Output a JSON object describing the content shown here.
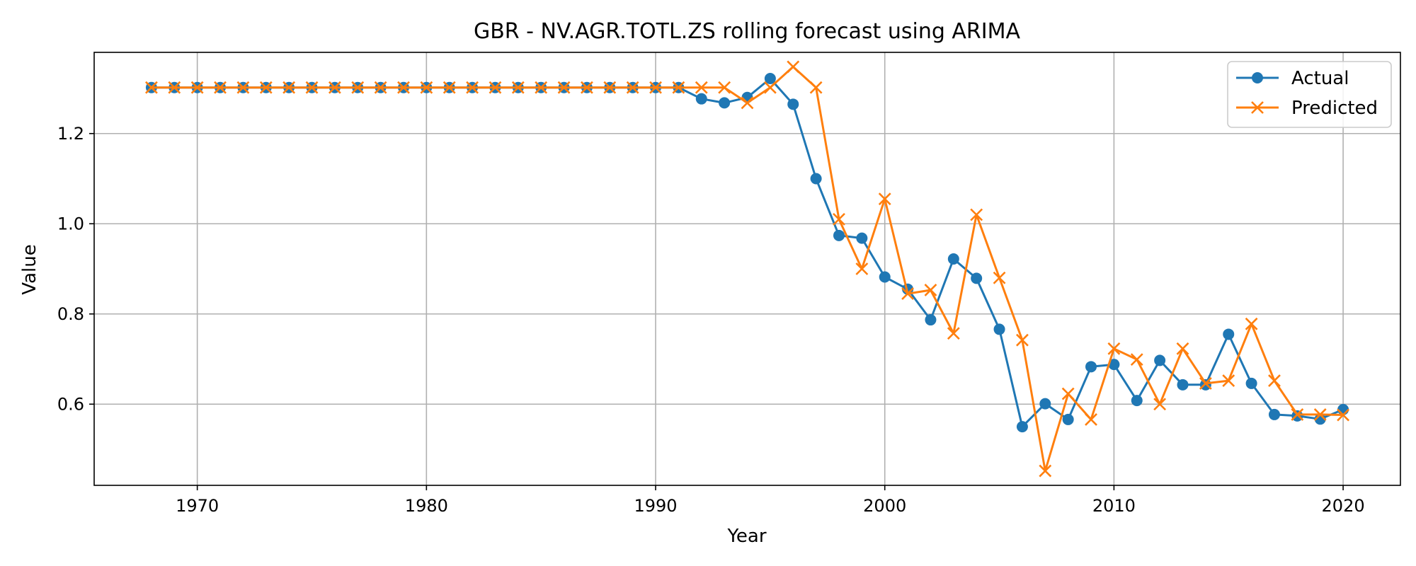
{
  "chart_data": {
    "type": "line",
    "title": "GBR - NV.AGR.TOTL.ZS rolling forecast using ARIMA",
    "xlabel": "Year",
    "ylabel": "Value",
    "xlim": [
      1965.5,
      2022.5
    ],
    "ylim": [
      0.42,
      1.38
    ],
    "xticks": [
      1970,
      1980,
      1990,
      2000,
      2010,
      2020
    ],
    "yticks": [
      0.6,
      0.8,
      1.0,
      1.2
    ],
    "ytick_labels": [
      "0.6",
      "0.8",
      "1.0",
      "1.2"
    ],
    "grid": true,
    "legend_position": "top-right",
    "x": [
      1968,
      1969,
      1970,
      1971,
      1972,
      1973,
      1974,
      1975,
      1976,
      1977,
      1978,
      1979,
      1980,
      1981,
      1982,
      1983,
      1984,
      1985,
      1986,
      1987,
      1988,
      1989,
      1990,
      1991,
      1992,
      1993,
      1994,
      1995,
      1996,
      1997,
      1998,
      1999,
      2000,
      2001,
      2002,
      2003,
      2004,
      2005,
      2006,
      2007,
      2008,
      2009,
      2010,
      2011,
      2012,
      2013,
      2014,
      2015,
      2016,
      2017,
      2018,
      2019,
      2020
    ],
    "series": [
      {
        "name": "Actual",
        "color": "#1f77b4",
        "marker": "circle",
        "values": [
          1.302,
          1.302,
          1.302,
          1.302,
          1.302,
          1.302,
          1.302,
          1.302,
          1.302,
          1.302,
          1.302,
          1.302,
          1.302,
          1.302,
          1.302,
          1.302,
          1.302,
          1.302,
          1.302,
          1.302,
          1.302,
          1.302,
          1.302,
          1.302,
          1.277,
          1.268,
          1.28,
          1.322,
          1.265,
          1.1,
          0.974,
          0.968,
          0.882,
          0.855,
          0.787,
          0.922,
          0.879,
          0.766,
          0.55,
          0.601,
          0.566,
          0.683,
          0.688,
          0.608,
          0.697,
          0.643,
          0.643,
          0.755,
          0.646,
          0.577,
          0.574,
          0.567,
          0.588
        ]
      },
      {
        "name": "Predicted",
        "color": "#ff7f0e",
        "marker": "x",
        "values": [
          1.302,
          1.302,
          1.302,
          1.302,
          1.302,
          1.302,
          1.302,
          1.302,
          1.302,
          1.302,
          1.302,
          1.302,
          1.302,
          1.302,
          1.302,
          1.302,
          1.302,
          1.302,
          1.302,
          1.302,
          1.302,
          1.302,
          1.302,
          1.302,
          1.302,
          1.302,
          1.268,
          1.302,
          1.348,
          1.302,
          1.01,
          0.9,
          1.055,
          0.845,
          0.853,
          0.757,
          1.02,
          0.88,
          0.742,
          0.452,
          0.623,
          0.566,
          0.723,
          0.699,
          0.6,
          0.723,
          0.646,
          0.652,
          0.778,
          0.652,
          0.577,
          0.577,
          0.576
        ]
      }
    ]
  }
}
